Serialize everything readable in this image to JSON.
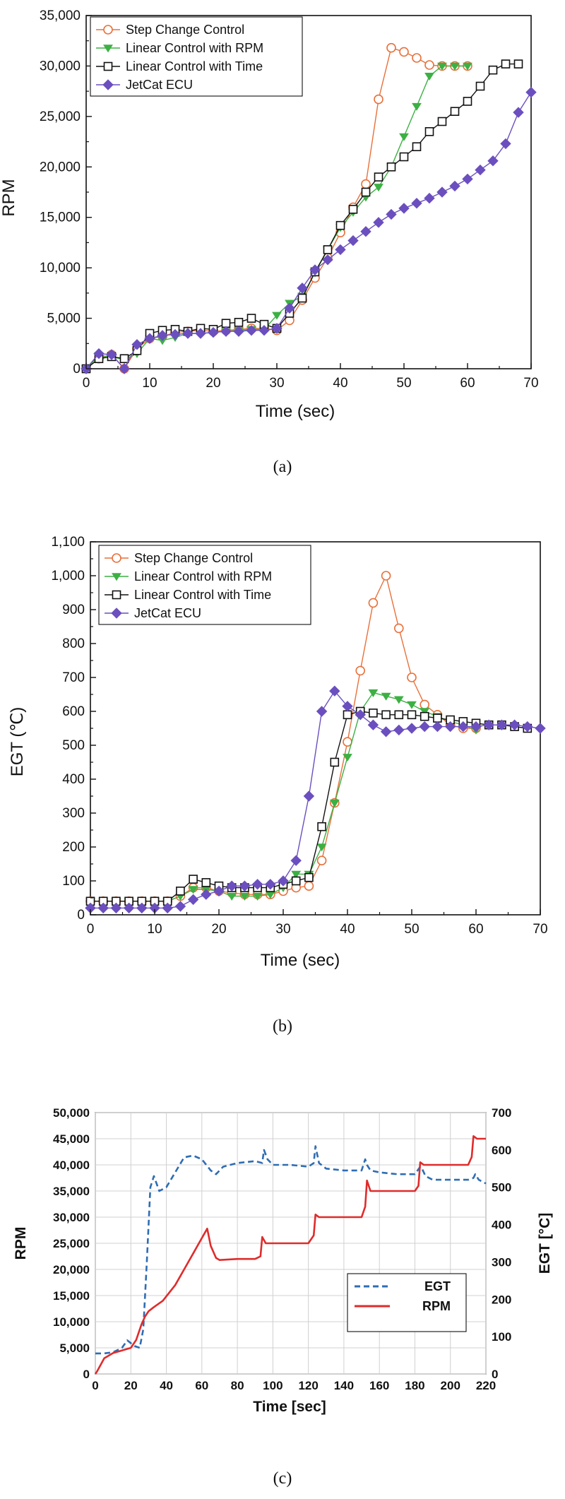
{
  "charts": [
    {
      "id": "a",
      "caption": "(a)",
      "type": "line",
      "xlabel": "Time (sec)",
      "ylabel": "RPM",
      "xlim": [
        0,
        70
      ],
      "ylim": [
        0,
        35000
      ],
      "xticks": [
        0,
        10,
        20,
        30,
        40,
        50,
        60,
        70
      ],
      "yticks": [
        0,
        5000,
        10000,
        15000,
        20000,
        25000,
        30000,
        35000
      ],
      "xtick_labels": [
        "0",
        "10",
        "20",
        "30",
        "40",
        "50",
        "60",
        "70"
      ],
      "ytick_labels": [
        "0",
        "5,000",
        "10,000",
        "15,000",
        "20,000",
        "25,000",
        "30,000",
        "35,000"
      ],
      "legend": [
        "Step Change Control",
        "Linear Control with RPM",
        "Linear Control with Time",
        "JetCat ECU"
      ],
      "series": [
        {
          "name": "Step Change Control",
          "color": "#e8703a",
          "marker": "circle",
          "x": [
            0,
            2,
            4,
            6,
            8,
            10,
            12,
            14,
            16,
            18,
            20,
            22,
            24,
            26,
            28,
            30,
            32,
            34,
            36,
            38,
            40,
            42,
            44,
            46,
            48,
            50,
            52,
            54,
            56,
            58,
            60
          ],
          "y": [
            0,
            1000,
            1400,
            0,
            2000,
            3000,
            3200,
            3600,
            3700,
            3800,
            3700,
            3800,
            3900,
            4000,
            4000,
            3800,
            4800,
            6800,
            9000,
            11000,
            13500,
            16000,
            18300,
            26700,
            31800,
            31400,
            30800,
            30100,
            30000,
            30000,
            30000
          ]
        },
        {
          "name": "Linear Control with RPM",
          "color": "#3cb043",
          "marker": "triangle-down",
          "x": [
            0,
            2,
            4,
            6,
            8,
            10,
            12,
            14,
            16,
            18,
            20,
            22,
            24,
            26,
            28,
            30,
            32,
            34,
            36,
            38,
            40,
            42,
            44,
            46,
            48,
            50,
            52,
            54,
            56,
            58,
            60
          ],
          "y": [
            0,
            1300,
            1200,
            900,
            1500,
            3000,
            2800,
            3100,
            3500,
            3500,
            3600,
            3700,
            3800,
            3900,
            3900,
            5300,
            6500,
            7200,
            9500,
            11800,
            14000,
            15500,
            17000,
            18000,
            20000,
            23000,
            26000,
            29000,
            30000,
            30000,
            30000
          ]
        },
        {
          "name": "Linear Control with Time",
          "color": "#111111",
          "marker": "square",
          "x": [
            0,
            2,
            4,
            6,
            8,
            10,
            12,
            14,
            16,
            18,
            20,
            22,
            24,
            26,
            28,
            30,
            32,
            34,
            36,
            38,
            40,
            42,
            44,
            46,
            48,
            50,
            52,
            54,
            56,
            58,
            60,
            62,
            64,
            66,
            68
          ],
          "y": [
            0,
            1000,
            1200,
            1000,
            1800,
            3500,
            3800,
            3900,
            3700,
            4000,
            3900,
            4500,
            4600,
            5000,
            4400,
            4000,
            5500,
            7000,
            9600,
            11800,
            14200,
            15800,
            17500,
            19000,
            20000,
            21000,
            22000,
            23500,
            24500,
            25500,
            26500,
            28000,
            29600,
            30200,
            30200
          ]
        },
        {
          "name": "JetCat ECU",
          "color": "#6b4fbf",
          "marker": "diamond",
          "x": [
            0,
            2,
            4,
            6,
            8,
            10,
            12,
            14,
            16,
            18,
            20,
            22,
            24,
            26,
            28,
            30,
            32,
            34,
            36,
            38,
            40,
            42,
            44,
            46,
            48,
            50,
            52,
            54,
            56,
            58,
            60,
            62,
            64,
            66,
            68,
            70
          ],
          "y": [
            0,
            1500,
            1400,
            0,
            2400,
            3000,
            3300,
            3400,
            3500,
            3500,
            3600,
            3700,
            3700,
            3800,
            3800,
            4000,
            6000,
            8000,
            9800,
            10800,
            11800,
            12700,
            13600,
            14500,
            15300,
            15900,
            16400,
            16900,
            17500,
            18100,
            18800,
            19700,
            20600,
            22300,
            25400,
            27400
          ]
        }
      ]
    },
    {
      "id": "b",
      "caption": "(b)",
      "type": "line",
      "xlabel": "Time (sec)",
      "ylabel": "EGT (℃)",
      "xlim": [
        0,
        70
      ],
      "ylim": [
        0,
        1100
      ],
      "xticks": [
        0,
        10,
        20,
        30,
        40,
        50,
        60,
        70
      ],
      "yticks": [
        0,
        100,
        200,
        300,
        400,
        500,
        600,
        700,
        800,
        900,
        1000,
        1100
      ],
      "xtick_labels": [
        "0",
        "10",
        "20",
        "30",
        "40",
        "50",
        "60",
        "70"
      ],
      "ytick_labels": [
        "0",
        "100",
        "200",
        "300",
        "400",
        "500",
        "600",
        "700",
        "800",
        "900",
        "1,000",
        "1,100"
      ],
      "legend": [
        "Step Change Control",
        "Linear Control with RPM",
        "Linear Control with Time",
        "JetCat ECU"
      ],
      "series": [
        {
          "name": "Step Change Control",
          "color": "#e8703a",
          "marker": "circle",
          "x": [
            0,
            2,
            4,
            6,
            8,
            10,
            12,
            14,
            16,
            18,
            20,
            22,
            24,
            26,
            28,
            30,
            32,
            34,
            36,
            38,
            40,
            42,
            44,
            46,
            48,
            50,
            52,
            54,
            56,
            58,
            60
          ],
          "y": [
            40,
            40,
            40,
            40,
            40,
            40,
            40,
            55,
            80,
            80,
            70,
            65,
            60,
            60,
            60,
            70,
            80,
            85,
            160,
            330,
            510,
            720,
            920,
            1000,
            845,
            700,
            620,
            590,
            560,
            550,
            550
          ]
        },
        {
          "name": "Linear Control with RPM",
          "color": "#3cb043",
          "marker": "triangle-down",
          "x": [
            0,
            2,
            4,
            6,
            8,
            10,
            12,
            14,
            16,
            18,
            20,
            22,
            24,
            26,
            28,
            30,
            32,
            34,
            36,
            38,
            40,
            42,
            44,
            46,
            48,
            50,
            52,
            54,
            56,
            58,
            60
          ],
          "y": [
            40,
            40,
            40,
            40,
            40,
            40,
            40,
            55,
            75,
            75,
            70,
            55,
            55,
            55,
            60,
            80,
            120,
            120,
            200,
            330,
            465,
            600,
            655,
            645,
            635,
            620,
            600,
            585,
            570,
            560,
            545
          ]
        },
        {
          "name": "Linear Control with Time",
          "color": "#111111",
          "marker": "square",
          "x": [
            0,
            2,
            4,
            6,
            8,
            10,
            12,
            14,
            16,
            18,
            20,
            22,
            24,
            26,
            28,
            30,
            32,
            34,
            36,
            38,
            40,
            42,
            44,
            46,
            48,
            50,
            52,
            54,
            56,
            58,
            60,
            62,
            64,
            66,
            68
          ],
          "y": [
            40,
            40,
            40,
            40,
            40,
            40,
            40,
            70,
            105,
            95,
            85,
            80,
            80,
            80,
            80,
            90,
            100,
            110,
            260,
            450,
            590,
            600,
            595,
            590,
            590,
            590,
            585,
            580,
            575,
            570,
            565,
            560,
            560,
            555,
            550
          ]
        },
        {
          "name": "JetCat ECU",
          "color": "#6b4fbf",
          "marker": "diamond",
          "x": [
            0,
            2,
            4,
            6,
            8,
            10,
            12,
            14,
            16,
            18,
            20,
            22,
            24,
            26,
            28,
            30,
            32,
            34,
            36,
            38,
            40,
            42,
            44,
            46,
            48,
            50,
            52,
            54,
            56,
            58,
            60,
            62,
            64,
            66,
            68,
            70
          ],
          "y": [
            20,
            20,
            20,
            20,
            20,
            20,
            20,
            25,
            45,
            60,
            70,
            85,
            85,
            90,
            90,
            100,
            160,
            350,
            600,
            660,
            615,
            590,
            560,
            540,
            545,
            550,
            555,
            555,
            555,
            555,
            555,
            560,
            560,
            560,
            555,
            550
          ]
        }
      ]
    },
    {
      "id": "c",
      "caption": "(c)",
      "type": "line",
      "xlabel": "Time [sec]",
      "ylabel": "RPM",
      "y2label": "EGT [°C]",
      "xlim": [
        0,
        220
      ],
      "ylim": [
        0,
        50000
      ],
      "y2lim": [
        0,
        700
      ],
      "xticks": [
        0,
        20,
        40,
        60,
        80,
        100,
        120,
        140,
        160,
        180,
        200,
        220
      ],
      "yticks": [
        0,
        5000,
        10000,
        15000,
        20000,
        25000,
        30000,
        35000,
        40000,
        45000,
        50000
      ],
      "y2ticks": [
        0,
        100,
        200,
        300,
        400,
        500,
        600,
        700
      ],
      "xtick_labels": [
        "0",
        "20",
        "40",
        "60",
        "80",
        "100",
        "120",
        "140",
        "160",
        "180",
        "200",
        "220"
      ],
      "ytick_labels": [
        "0",
        "5,000",
        "10,000",
        "15,000",
        "20,000",
        "25,000",
        "30,000",
        "35,000",
        "40,000",
        "45,000",
        "50,000"
      ],
      "y2tick_labels": [
        "0",
        "100",
        "200",
        "300",
        "400",
        "500",
        "600",
        "700"
      ],
      "legend": [
        "EGT",
        "RPM"
      ],
      "series": [
        {
          "name": "EGT",
          "axis": "right",
          "color": "#2e6db3",
          "dash": true,
          "x": [
            0,
            5,
            10,
            15,
            18,
            22,
            25,
            27,
            29,
            31,
            33,
            36,
            40,
            45,
            50,
            55,
            60,
            65,
            68,
            72,
            80,
            90,
            94,
            95,
            97,
            100,
            110,
            120,
            123,
            124,
            126,
            130,
            140,
            150,
            152,
            153,
            155,
            160,
            170,
            180,
            183,
            184,
            186,
            190,
            200,
            210,
            213,
            214,
            216,
            220
          ],
          "y": [
            55,
            55,
            58,
            70,
            90,
            75,
            70,
            120,
            300,
            500,
            530,
            490,
            500,
            540,
            580,
            585,
            575,
            545,
            535,
            555,
            565,
            570,
            565,
            600,
            575,
            560,
            560,
            555,
            565,
            610,
            565,
            550,
            545,
            545,
            575,
            560,
            545,
            540,
            535,
            535,
            555,
            550,
            530,
            520,
            520,
            520,
            525,
            535,
            520,
            510
          ]
        },
        {
          "name": "RPM",
          "axis": "left",
          "color": "#e02b2b",
          "dash": false,
          "x": [
            0,
            1,
            5,
            10,
            15,
            20,
            23,
            26,
            28,
            30,
            33,
            38,
            45,
            50,
            55,
            60,
            63,
            65,
            68,
            70,
            80,
            90,
            93,
            94,
            96,
            100,
            110,
            120,
            123,
            124,
            126,
            130,
            140,
            150,
            152,
            153,
            155,
            160,
            170,
            180,
            182,
            183,
            185,
            190,
            200,
            210,
            212,
            213,
            215,
            220
          ],
          "y": [
            0,
            500,
            3000,
            4000,
            4500,
            5000,
            6500,
            9500,
            11000,
            12000,
            12800,
            14000,
            17000,
            20000,
            23000,
            26000,
            27800,
            24500,
            22200,
            21800,
            22000,
            22000,
            22500,
            26200,
            25000,
            25000,
            25000,
            25000,
            26500,
            30500,
            30000,
            30000,
            30000,
            30000,
            32000,
            37000,
            35000,
            35000,
            35000,
            35000,
            36000,
            40500,
            40000,
            40000,
            40000,
            40000,
            41500,
            45500,
            45000,
            45000
          ]
        }
      ]
    }
  ]
}
